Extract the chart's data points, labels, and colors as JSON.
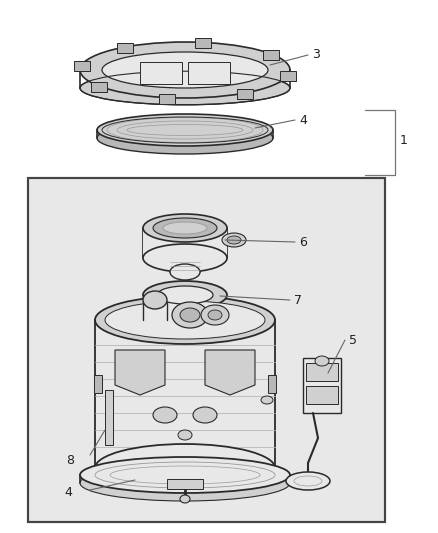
{
  "bg_color": "#ffffff",
  "box_bg": "#ffffff",
  "lc": "#2a2a2a",
  "lc_thin": "#555555",
  "gray1": "#e8e8e8",
  "gray2": "#d0d0d0",
  "gray3": "#b8b8b8",
  "gray4": "#999999"
}
